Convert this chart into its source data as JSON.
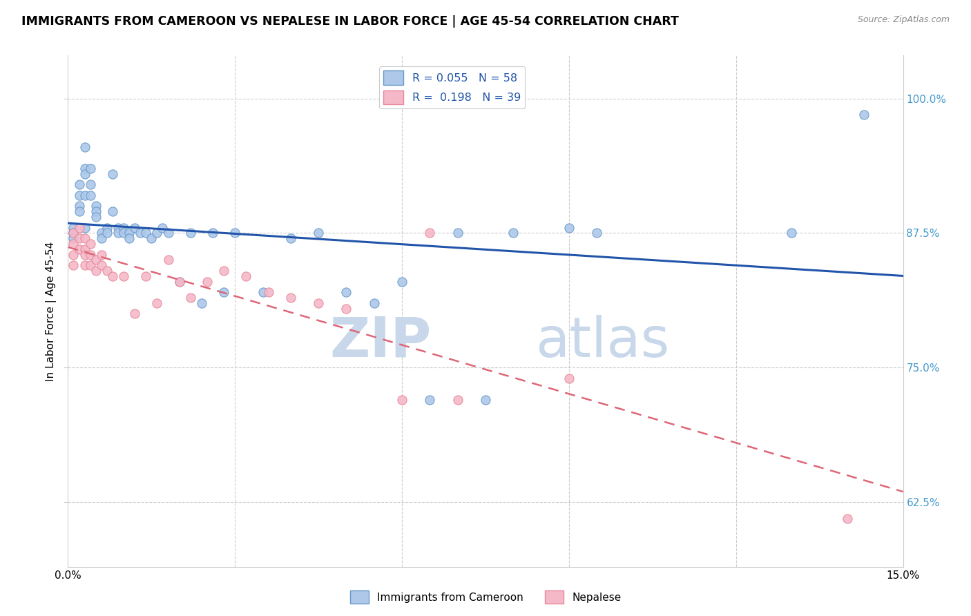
{
  "title": "IMMIGRANTS FROM CAMEROON VS NEPALESE IN LABOR FORCE | AGE 45-54 CORRELATION CHART",
  "source": "Source: ZipAtlas.com",
  "ylabel": "In Labor Force | Age 45-54",
  "yticks": [
    0.625,
    0.75,
    0.875,
    1.0
  ],
  "ytick_labels": [
    "62.5%",
    "75.0%",
    "87.5%",
    "100.0%"
  ],
  "xlim": [
    0.0,
    0.15
  ],
  "ylim": [
    0.565,
    1.04
  ],
  "legend_entries": [
    {
      "label": "R = 0.055   N = 58",
      "color": "#a8c4e0"
    },
    {
      "label": "R =  0.198   N = 39",
      "color": "#f4b8c8"
    }
  ],
  "bottom_legend": [
    {
      "label": "Immigrants from Cameroon",
      "color": "#a8c4e0"
    },
    {
      "label": "Nepalese",
      "color": "#f4b8c8"
    }
  ],
  "cameroon_x": [
    0.001,
    0.001,
    0.001,
    0.001,
    0.002,
    0.002,
    0.002,
    0.002,
    0.003,
    0.003,
    0.003,
    0.003,
    0.003,
    0.004,
    0.004,
    0.004,
    0.005,
    0.005,
    0.005,
    0.006,
    0.006,
    0.007,
    0.007,
    0.008,
    0.008,
    0.009,
    0.009,
    0.01,
    0.01,
    0.011,
    0.011,
    0.012,
    0.013,
    0.014,
    0.015,
    0.016,
    0.017,
    0.018,
    0.02,
    0.022,
    0.024,
    0.026,
    0.028,
    0.03,
    0.035,
    0.04,
    0.045,
    0.05,
    0.055,
    0.06,
    0.065,
    0.07,
    0.075,
    0.08,
    0.09,
    0.095,
    0.13,
    0.143
  ],
  "cameroon_y": [
    0.875,
    0.88,
    0.875,
    0.87,
    0.92,
    0.91,
    0.9,
    0.895,
    0.935,
    0.955,
    0.93,
    0.91,
    0.88,
    0.935,
    0.92,
    0.91,
    0.9,
    0.895,
    0.89,
    0.875,
    0.87,
    0.88,
    0.875,
    0.93,
    0.895,
    0.88,
    0.875,
    0.88,
    0.875,
    0.875,
    0.87,
    0.88,
    0.875,
    0.875,
    0.87,
    0.875,
    0.88,
    0.875,
    0.83,
    0.875,
    0.81,
    0.875,
    0.82,
    0.875,
    0.82,
    0.87,
    0.875,
    0.82,
    0.81,
    0.83,
    0.72,
    0.875,
    0.72,
    0.875,
    0.88,
    0.875,
    0.875,
    0.985
  ],
  "nepalese_x": [
    0.001,
    0.001,
    0.001,
    0.001,
    0.002,
    0.002,
    0.002,
    0.003,
    0.003,
    0.003,
    0.003,
    0.004,
    0.004,
    0.004,
    0.005,
    0.005,
    0.006,
    0.006,
    0.007,
    0.008,
    0.01,
    0.012,
    0.014,
    0.016,
    0.018,
    0.02,
    0.022,
    0.025,
    0.028,
    0.032,
    0.036,
    0.04,
    0.045,
    0.05,
    0.06,
    0.065,
    0.07,
    0.09,
    0.14
  ],
  "nepalese_y": [
    0.875,
    0.865,
    0.855,
    0.845,
    0.88,
    0.87,
    0.86,
    0.87,
    0.86,
    0.855,
    0.845,
    0.865,
    0.855,
    0.845,
    0.85,
    0.84,
    0.855,
    0.845,
    0.84,
    0.835,
    0.835,
    0.8,
    0.835,
    0.81,
    0.85,
    0.83,
    0.815,
    0.83,
    0.84,
    0.835,
    0.82,
    0.815,
    0.81,
    0.805,
    0.72,
    0.875,
    0.72,
    0.74,
    0.61
  ],
  "cameroon_color": "#adc8e8",
  "cameroon_edge": "#6699cc",
  "nepalese_color": "#f4b8c8",
  "nepalese_edge": "#e88899",
  "trend_cameroon_color": "#2255aa",
  "trend_nepalese_color": "#dd6677",
  "watermark_zip": "ZIP",
  "watermark_atlas": "atlas",
  "watermark_color": "#c8d8ea",
  "background_color": "#ffffff",
  "grid_color": "#cccccc",
  "title_fontsize": 12.5,
  "ylabel_fontsize": 11,
  "tick_fontsize": 11,
  "marker_size": 90
}
